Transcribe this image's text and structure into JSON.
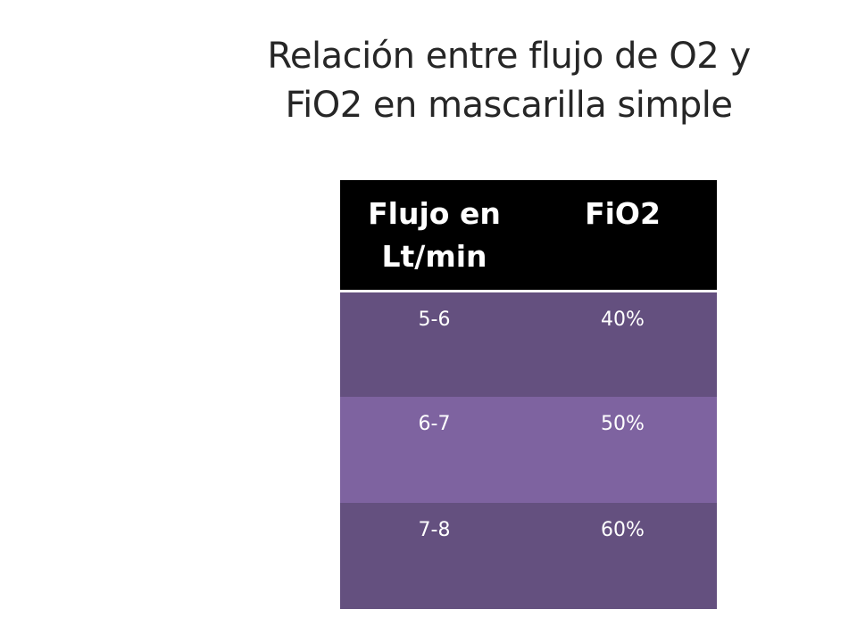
{
  "slide": {
    "title_line1": "Relación entre flujo de O2 y",
    "title_line2": "FiO2 en mascarilla simple"
  },
  "table": {
    "headers": [
      "Flujo en Lt/min",
      "FiO2"
    ],
    "rows": [
      [
        "5-6",
        "40%"
      ],
      [
        "6-7",
        "50%"
      ],
      [
        "7-8",
        "60%"
      ]
    ]
  },
  "colors": {
    "header_bg": "#000000",
    "row_dark": "#64507f",
    "row_light": "#7e63a0",
    "title_text": "#262626"
  }
}
